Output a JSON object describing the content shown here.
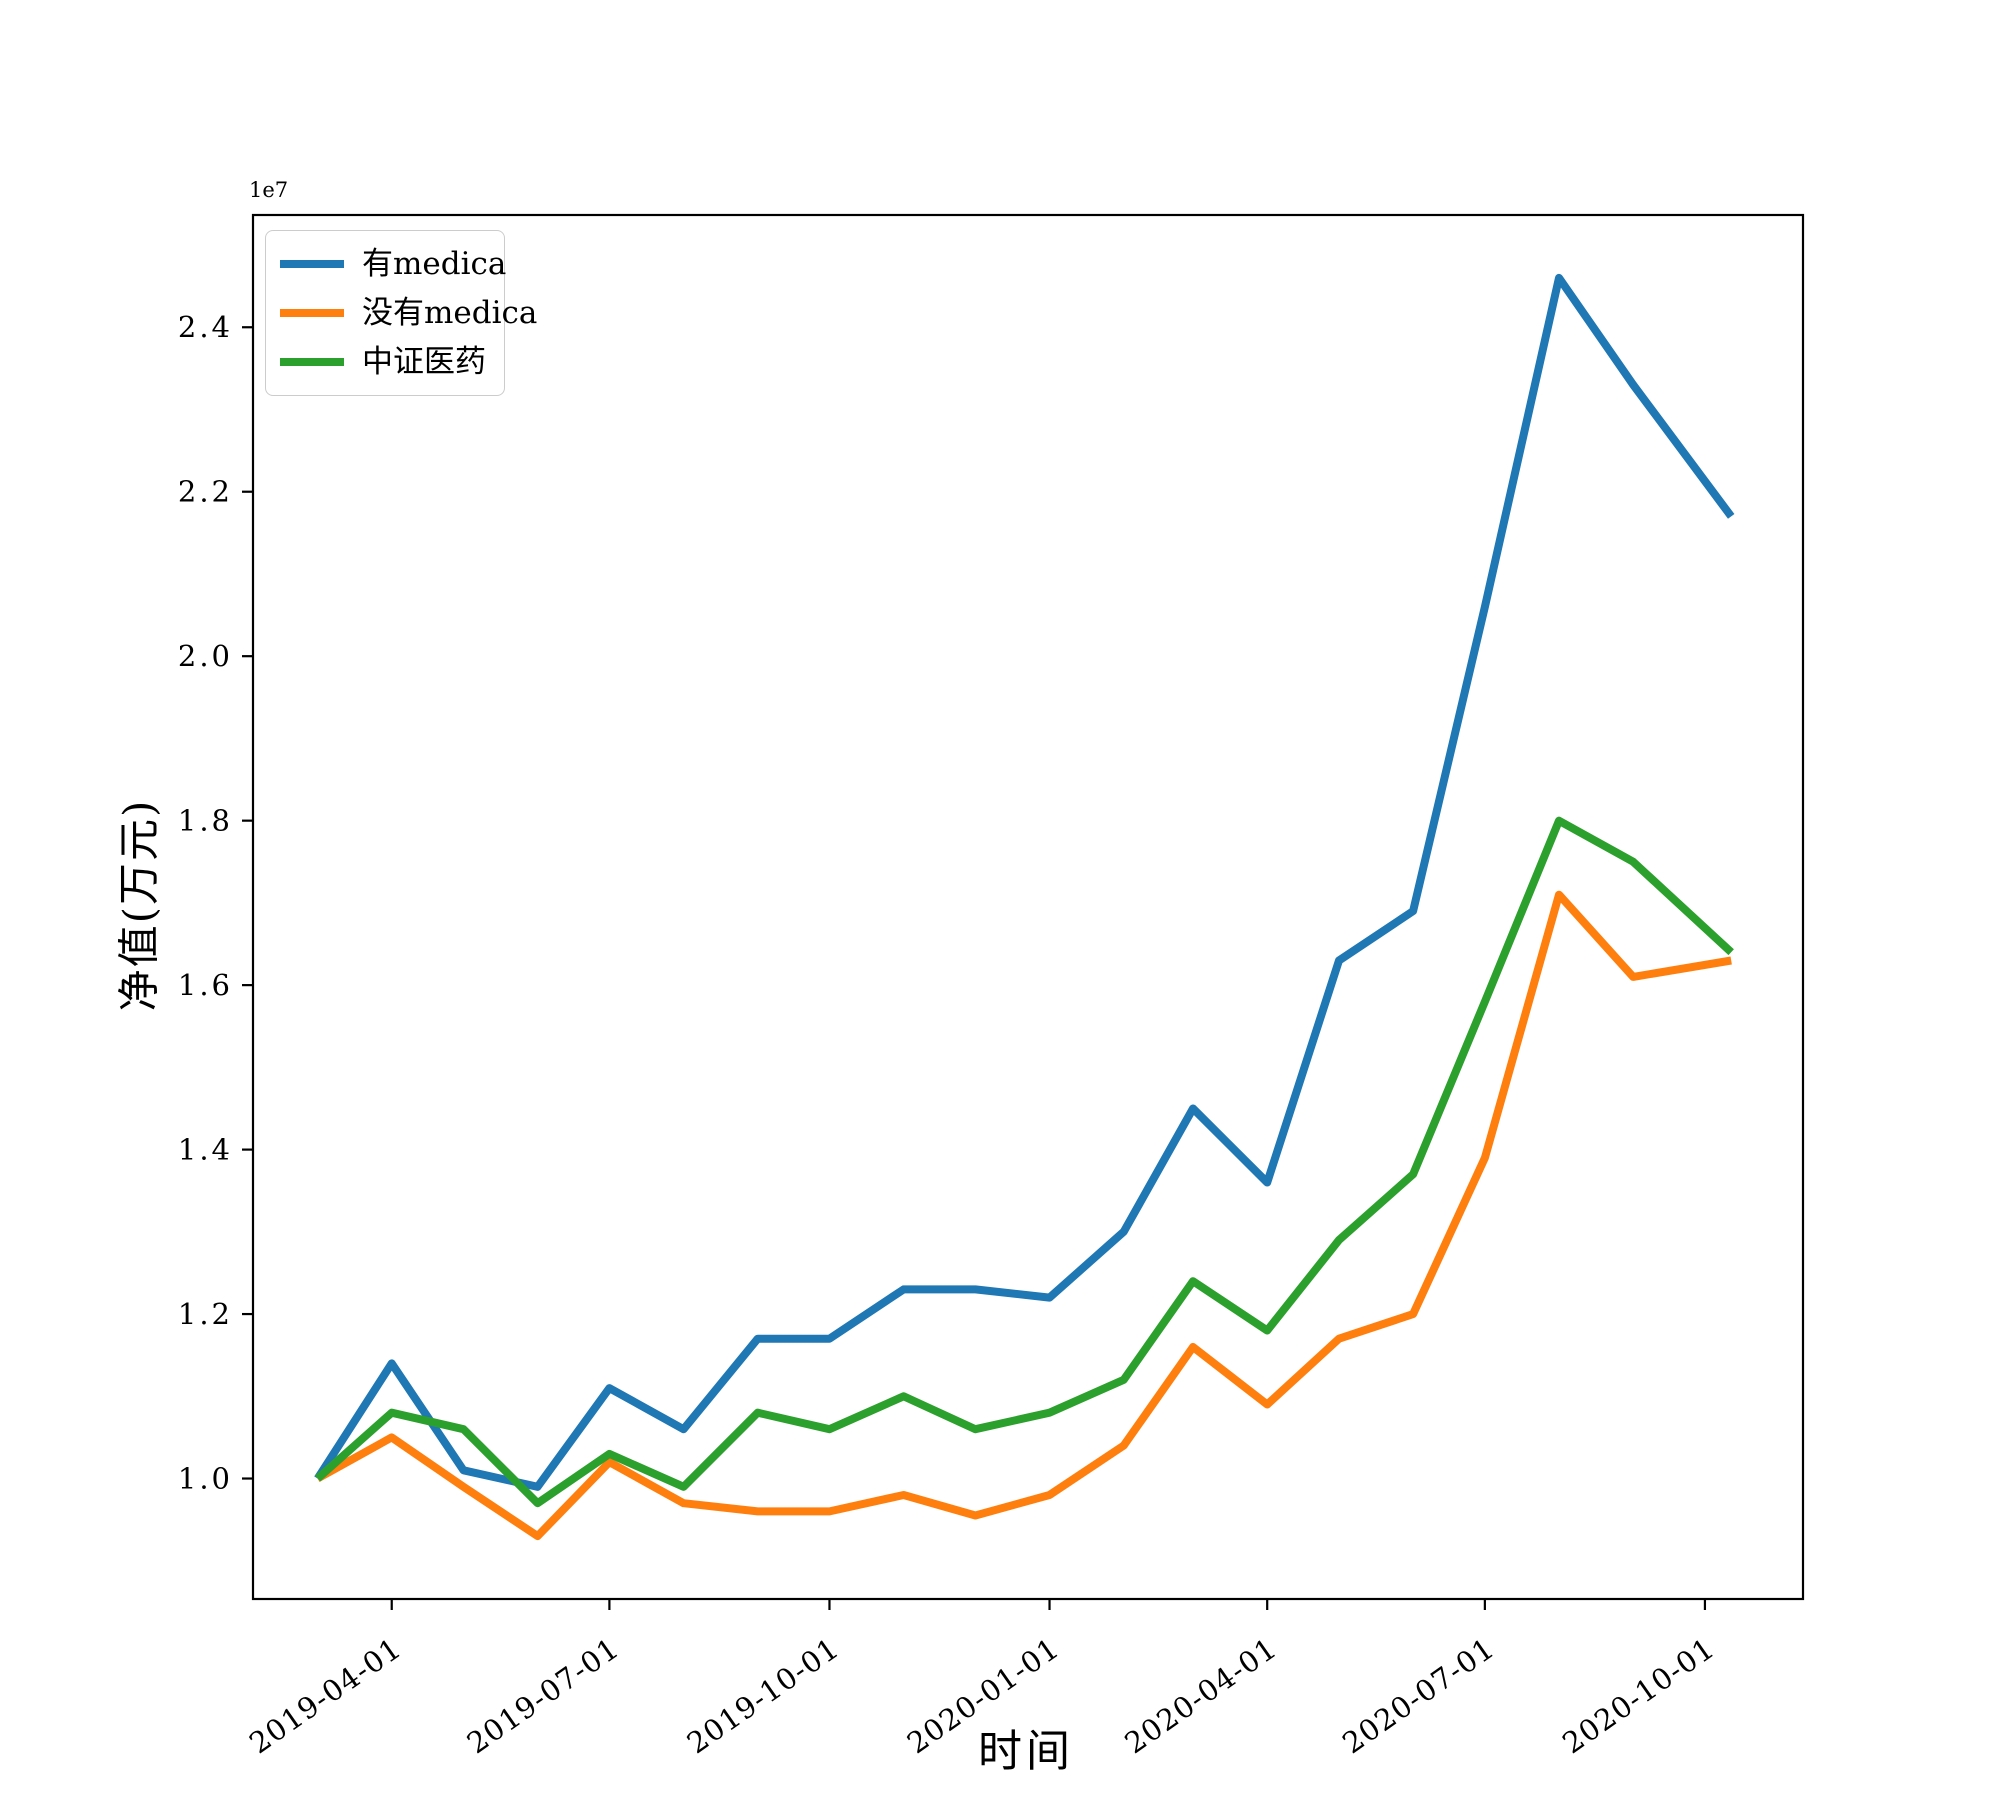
{
  "figure": {
    "offset_label": "1e7",
    "xlabel": "时间",
    "ylabel": "净值(万元)",
    "background_color": "#ffffff",
    "spine_color": "#000000"
  },
  "chart_data": {
    "type": "line",
    "title": "",
    "xlabel": "时间",
    "ylabel": "净值(万元)",
    "y_offset_multiplier": "1e7",
    "x": [
      "2019-03-01",
      "2019-04-01",
      "2019-05-01",
      "2019-06-01",
      "2019-07-01",
      "2019-08-01",
      "2019-09-01",
      "2019-10-01",
      "2019-11-01",
      "2019-12-01",
      "2020-01-01",
      "2020-02-01",
      "2020-03-01",
      "2020-04-01",
      "2020-05-01",
      "2020-06-01",
      "2020-07-01",
      "2020-08-01",
      "2020-09-01",
      "2020-10-01"
    ],
    "series": [
      {
        "name": "有medica",
        "color": "#1f77b4",
        "values": [
          1.0,
          1.14,
          1.01,
          0.99,
          1.11,
          1.06,
          1.17,
          1.17,
          1.23,
          1.23,
          1.22,
          1.3,
          1.45,
          1.36,
          1.63,
          1.69,
          2.06,
          2.46,
          2.33,
          2.17
        ]
      },
      {
        "name": "没有medica",
        "color": "#ff7f0e",
        "values": [
          1.0,
          1.05,
          0.99,
          0.93,
          1.02,
          0.97,
          0.96,
          0.96,
          0.98,
          0.955,
          0.98,
          1.04,
          1.16,
          1.09,
          1.17,
          1.2,
          1.39,
          1.71,
          1.61,
          1.63
        ]
      },
      {
        "name": "中证医药",
        "color": "#2ca02c",
        "values": [
          1.0,
          1.08,
          1.06,
          0.97,
          1.03,
          0.99,
          1.08,
          1.06,
          1.1,
          1.06,
          1.08,
          1.12,
          1.24,
          1.18,
          1.29,
          1.37,
          1.58,
          1.8,
          1.75,
          1.64
        ]
      }
    ],
    "y_ticks": [
      1.0,
      1.2,
      1.4,
      1.6,
      1.8,
      2.0,
      2.2,
      2.4
    ],
    "y_tick_labels": [
      "1.0",
      "1.2",
      "1.4",
      "1.6",
      "1.8",
      "2.0",
      "2.2",
      "2.4"
    ],
    "x_ticks": [
      "2019-04-01",
      "2019-07-01",
      "2019-10-01",
      "2020-01-01",
      "2020-04-01",
      "2020-07-01",
      "2020-10-01"
    ],
    "ylim": [
      0.8535,
      2.5365
    ],
    "xlim": [
      "2019-02-02",
      "2020-11-11"
    ],
    "x_end_extension_days": 11,
    "grid": false,
    "legend_position": "upper left",
    "line_width": 8
  }
}
